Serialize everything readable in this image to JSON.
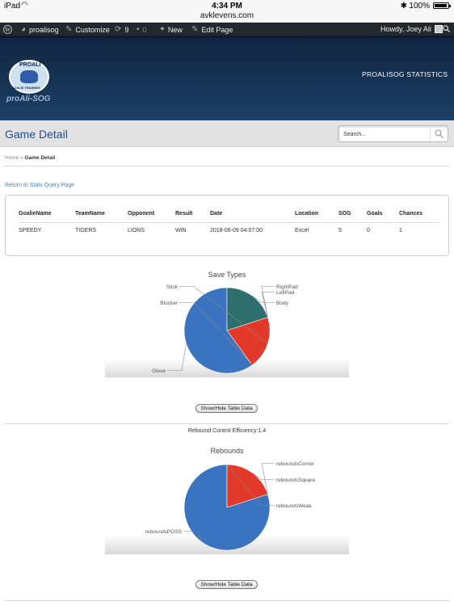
{
  "status_bar": {
    "carrier": "iPad",
    "time": "4:34 PM",
    "battery": "100%"
  },
  "url": "avklevens.com",
  "admin_bar": {
    "site": "proalisog",
    "customize": "Customize",
    "updates": "9",
    "comments": "0",
    "new": "New",
    "edit_page": "Edit Page",
    "greeting": "Howdy, Joey Ali"
  },
  "header": {
    "logo_top": "PROALI",
    "logo_bottom": "GOALIE TRAINING",
    "logo_wordmark": "proAli-SOG",
    "nav_link": "PROALISOG STATISTICS"
  },
  "page": {
    "title": "Game Detail"
  },
  "search": {
    "placeholder": "Search..."
  },
  "breadcrumb": {
    "home": "Home",
    "separator": "»",
    "current": "Game Detail"
  },
  "return_link": "Return to Stats Query Page",
  "stats_table": {
    "headers": [
      "GoalieName",
      "TeamName",
      "Opponent",
      "Result",
      "Date",
      "Location",
      "SOG",
      "Goals",
      "Chances"
    ],
    "row": [
      "SPEEDY",
      "TIGERS",
      "LIONS",
      "WIN",
      "2018-08-09 04:07:00",
      "Excel",
      "5",
      "0",
      "1"
    ]
  },
  "toggle_label": "Show/Hide Table Data",
  "efficiency": "Rebound Control Efficiency:1.4",
  "chart_data": [
    {
      "type": "pie",
      "title": "Save Types",
      "slices": [
        {
          "label": "Glove",
          "value": 3,
          "color": "#3a73bf"
        },
        {
          "label": "Blocker",
          "value": 0,
          "color": "#3a73bf"
        },
        {
          "label": "Stick",
          "value": 1,
          "color": "#e3392a"
        },
        {
          "label": "RightPad",
          "value": 0,
          "color": "#2e6f6e"
        },
        {
          "label": "LeftPad",
          "value": 0,
          "color": "#2e6f6e"
        },
        {
          "label": "Body",
          "value": 1,
          "color": "#2e6f6e"
        }
      ]
    },
    {
      "type": "pie",
      "title": "Rebounds",
      "slices": [
        {
          "label": "reboundsPOSS",
          "value": 4,
          "color": "#3a73bf"
        },
        {
          "label": "reboundsCorner",
          "value": 0,
          "color": "#e3392a"
        },
        {
          "label": "reboundsSquare",
          "value": 1,
          "color": "#e3392a"
        },
        {
          "label": "reboundsWeak",
          "value": 0,
          "color": "#e3392a"
        }
      ]
    }
  ]
}
